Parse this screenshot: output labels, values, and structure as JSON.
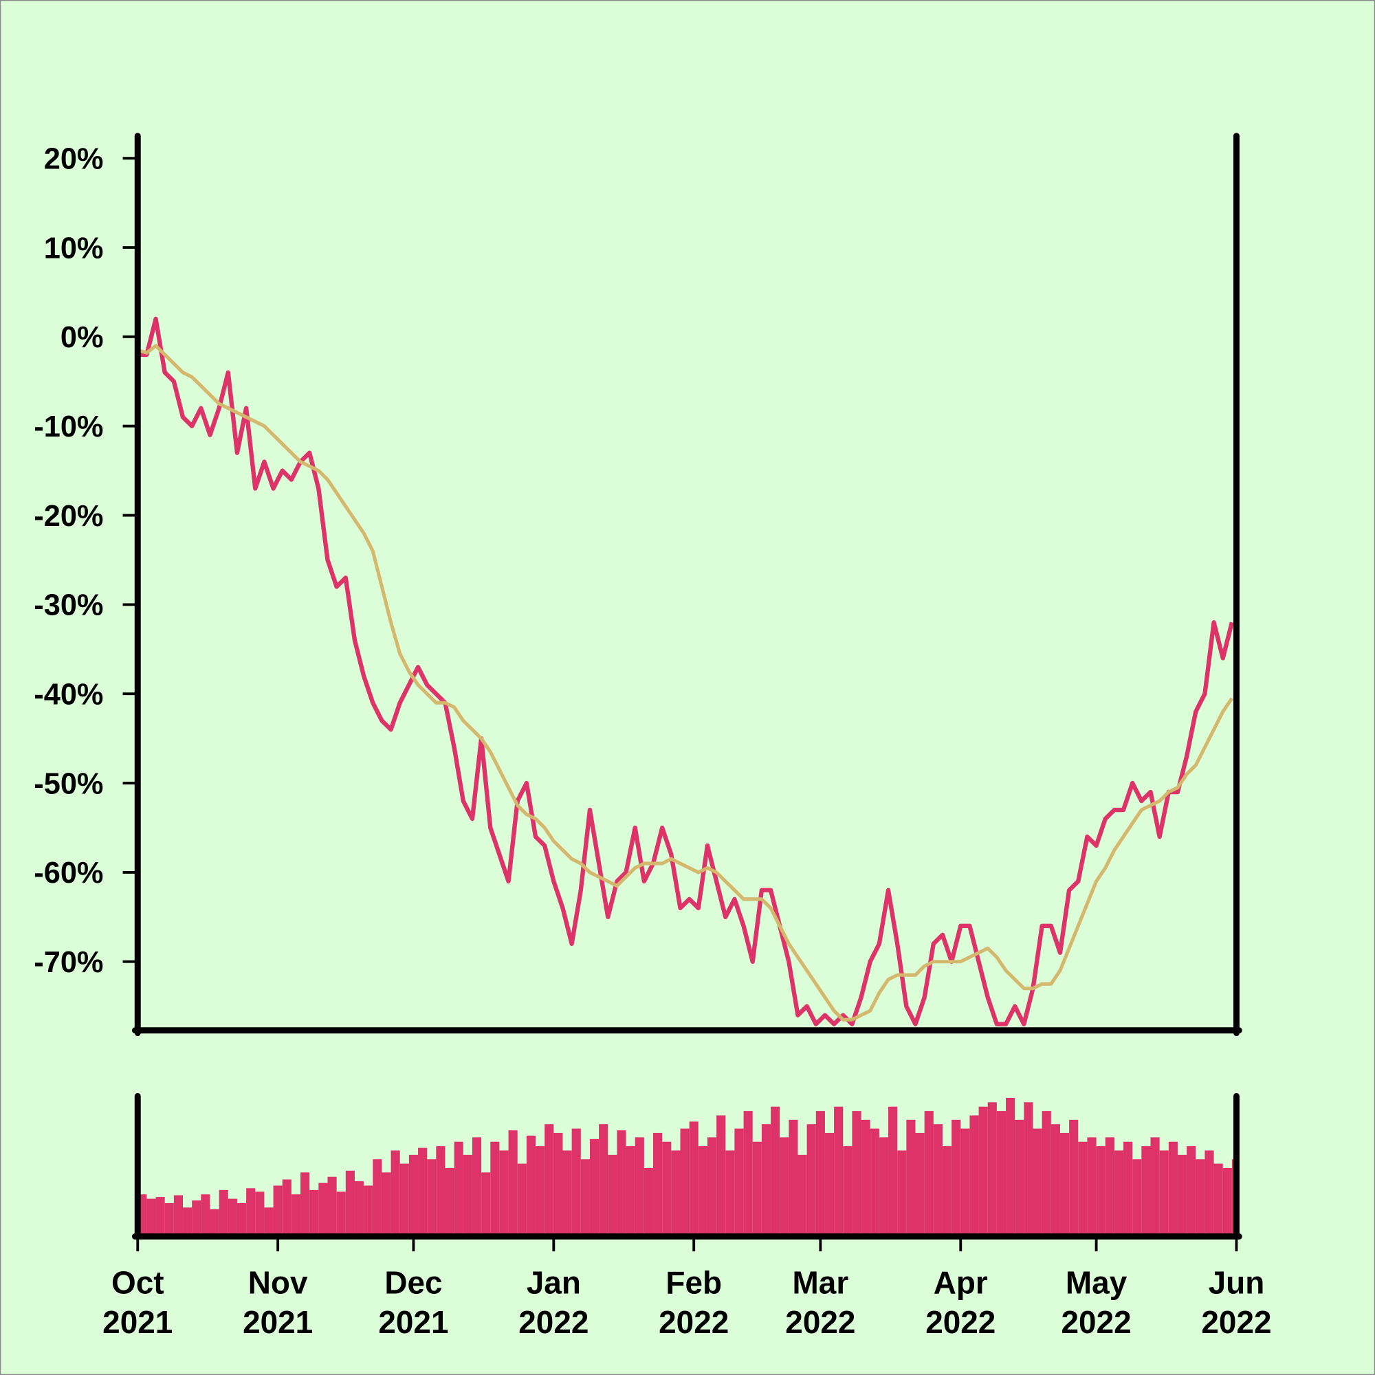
{
  "chart_data": {
    "type": "line",
    "background": "#dbfdd8",
    "x": [
      0,
      2,
      4,
      6,
      8,
      10,
      12,
      14,
      16,
      18,
      20,
      22,
      24,
      26,
      28,
      30,
      32,
      34,
      36,
      38,
      40,
      42,
      44,
      46,
      48,
      50,
      52,
      54,
      56,
      58,
      60,
      62,
      64,
      66,
      68,
      70,
      72,
      74,
      76,
      78,
      80,
      82,
      84,
      86,
      88,
      90,
      92,
      94,
      96,
      98,
      100,
      102,
      104,
      106,
      108,
      110,
      112,
      114,
      116,
      118,
      120,
      122,
      124,
      126,
      128,
      130,
      132,
      134,
      136,
      138,
      140,
      142,
      144,
      146,
      148,
      150,
      152,
      154,
      156,
      158,
      160,
      162,
      164,
      166,
      168,
      170,
      172,
      174,
      176,
      178,
      180,
      182,
      184,
      186,
      188,
      190,
      192,
      194,
      196,
      198,
      200,
      202,
      204,
      206,
      208,
      210,
      212,
      214,
      216,
      218,
      220,
      222,
      224,
      226,
      228,
      230,
      232,
      234,
      236,
      238,
      240,
      242
    ],
    "series": [
      {
        "color": "#de3369",
        "values": [
          -2,
          -2,
          2,
          -4,
          -5,
          -9,
          -10,
          -8,
          -11,
          -8,
          -4,
          -13,
          -8,
          -17,
          -14,
          -17,
          -15,
          -16,
          -14,
          -13,
          -17,
          -25,
          -28,
          -27,
          -34,
          -38,
          -41,
          -43,
          -44,
          -41,
          -39,
          -37,
          -39,
          -40,
          -41,
          -46,
          -52,
          -54,
          -45,
          -55,
          -58,
          -61,
          -52,
          -50,
          -56,
          -57,
          -61,
          -64,
          -68,
          -62,
          -53,
          -59,
          -65,
          -61,
          -60,
          -55,
          -61,
          -59,
          -55,
          -58,
          -64,
          -63,
          -64,
          -57,
          -61,
          -65,
          -63,
          -66,
          -70,
          -62,
          -62,
          -66,
          -70,
          -76,
          -75,
          -77,
          -76,
          -77,
          -76,
          -77,
          -74,
          -70,
          -68,
          -62,
          -68,
          -75,
          -77,
          -74,
          -68,
          -67,
          -70,
          -66,
          -66,
          -70,
          -74,
          -77,
          -77,
          -75,
          -77,
          -73,
          -66,
          -66,
          -69,
          -62,
          -61,
          -56,
          -57,
          -54,
          -53,
          -53,
          -50,
          -52,
          -51,
          -56,
          -51,
          -51,
          -47,
          -42,
          -40,
          -32,
          -36,
          -32
        ]
      },
      {
        "color": "#d4b86e",
        "values": [
          -1.5,
          -1.8,
          -1,
          -2,
          -3,
          -4,
          -4.5,
          -5.5,
          -6.5,
          -7.5,
          -8,
          -8.5,
          -9,
          -9.5,
          -10,
          -11,
          -12,
          -13,
          -14,
          -14.5,
          -15,
          -16,
          -17.5,
          -19,
          -20.5,
          -22,
          -24,
          -28,
          -32,
          -35.5,
          -37.5,
          -39,
          -40,
          -41,
          -41,
          -41.5,
          -43,
          -44,
          -45,
          -46.5,
          -48.5,
          -50.5,
          -52.5,
          -53.5,
          -54,
          -55,
          -56.5,
          -57.5,
          -58.5,
          -59,
          -60,
          -60.5,
          -61,
          -61.5,
          -60.5,
          -59.5,
          -59,
          -59,
          -59,
          -58.5,
          -59,
          -59.5,
          -60,
          -59.5,
          -60,
          -61,
          -62,
          -63,
          -63,
          -63,
          -64,
          -66,
          -68,
          -69.5,
          -71,
          -72.5,
          -74,
          -75.5,
          -76.5,
          -76.5,
          -76,
          -75.5,
          -73.5,
          -72,
          -71.5,
          -71.5,
          -71.5,
          -70.5,
          -70,
          -70,
          -70,
          -70,
          -69.5,
          -69,
          -68.5,
          -69.5,
          -71,
          -72,
          -73,
          -73,
          -72.5,
          -72.5,
          -71,
          -68.5,
          -66,
          -63.5,
          -61,
          -59.5,
          -57.5,
          -56,
          -54.5,
          -53,
          -52.5,
          -52,
          -51,
          -50.5,
          -49,
          -48,
          -46,
          -44,
          -42,
          -40.5
        ]
      }
    ],
    "volume": {
      "color": "#de3369",
      "values": [
        45,
        40,
        42,
        35,
        44,
        30,
        38,
        45,
        28,
        50,
        40,
        35,
        52,
        48,
        30,
        55,
        62,
        45,
        70,
        50,
        58,
        65,
        48,
        72,
        60,
        55,
        85,
        70,
        95,
        80,
        90,
        98,
        85,
        100,
        75,
        105,
        90,
        110,
        70,
        105,
        95,
        118,
        80,
        112,
        100,
        125,
        115,
        95,
        120,
        85,
        108,
        125,
        90,
        118,
        100,
        110,
        75,
        115,
        105,
        95,
        120,
        128,
        100,
        110,
        135,
        95,
        120,
        140,
        105,
        125,
        145,
        110,
        130,
        90,
        125,
        140,
        115,
        145,
        100,
        140,
        130,
        120,
        110,
        145,
        95,
        130,
        115,
        140,
        125,
        100,
        130,
        120,
        135,
        145,
        150,
        140,
        155,
        130,
        150,
        120,
        140,
        125,
        115,
        130,
        105,
        110,
        100,
        110,
        95,
        105,
        85,
        100,
        110,
        95,
        105,
        90,
        100,
        85,
        95,
        80,
        75,
        85
      ]
    },
    "xlim": [
      0,
      243
    ],
    "xticks": [
      {
        "value": 0,
        "label": "Oct 2021"
      },
      {
        "value": 31,
        "label": "Nov 2021"
      },
      {
        "value": 61,
        "label": "Dec 2021"
      },
      {
        "value": 92,
        "label": "Jan 2022"
      },
      {
        "value": 123,
        "label": "Feb 2022"
      },
      {
        "value": 151,
        "label": "Mar 2022"
      },
      {
        "value": 182,
        "label": "Apr 2022"
      },
      {
        "value": 212,
        "label": "May 2022"
      },
      {
        "value": 243,
        "label": "Jun 2022"
      }
    ],
    "ylim": [
      -77.7,
      22.5
    ],
    "yticks": [
      {
        "value": 20,
        "label": "20%"
      },
      {
        "value": 10,
        "label": "10%"
      },
      {
        "value": 0,
        "label": "0%"
      },
      {
        "value": -10,
        "label": "-10%"
      },
      {
        "value": -20,
        "label": "-20%"
      },
      {
        "value": -30,
        "label": "-30%"
      },
      {
        "value": -40,
        "label": "-40%"
      },
      {
        "value": -50,
        "label": "-50%"
      },
      {
        "value": -60,
        "label": "-60%"
      },
      {
        "value": -70,
        "label": "-70%"
      }
    ]
  }
}
